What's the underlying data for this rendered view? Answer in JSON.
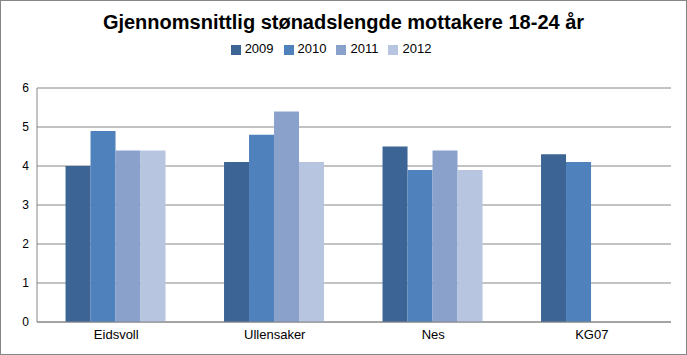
{
  "chart_data": {
    "type": "bar",
    "title": "Gjennomsnittlig stønadslengde mottakere 18-24 år",
    "categories": [
      "Eidsvoll",
      "Ullensaker",
      "Nes",
      "KG07"
    ],
    "series": [
      {
        "name": "2009",
        "color": "#3c6596",
        "values": [
          4.0,
          4.1,
          4.5,
          4.3
        ]
      },
      {
        "name": "2010",
        "color": "#4f81bd",
        "values": [
          4.9,
          4.8,
          3.9,
          4.1
        ]
      },
      {
        "name": "2011",
        "color": "#8aa2cb",
        "values": [
          4.4,
          5.4,
          4.4,
          null
        ]
      },
      {
        "name": "2012",
        "color": "#b7c5e1",
        "values": [
          4.4,
          4.1,
          3.9,
          null
        ]
      }
    ],
    "ylim": [
      0,
      6
    ],
    "yticks": [
      0,
      1,
      2,
      3,
      4,
      5,
      6
    ],
    "grid": true,
    "legend": "top"
  }
}
